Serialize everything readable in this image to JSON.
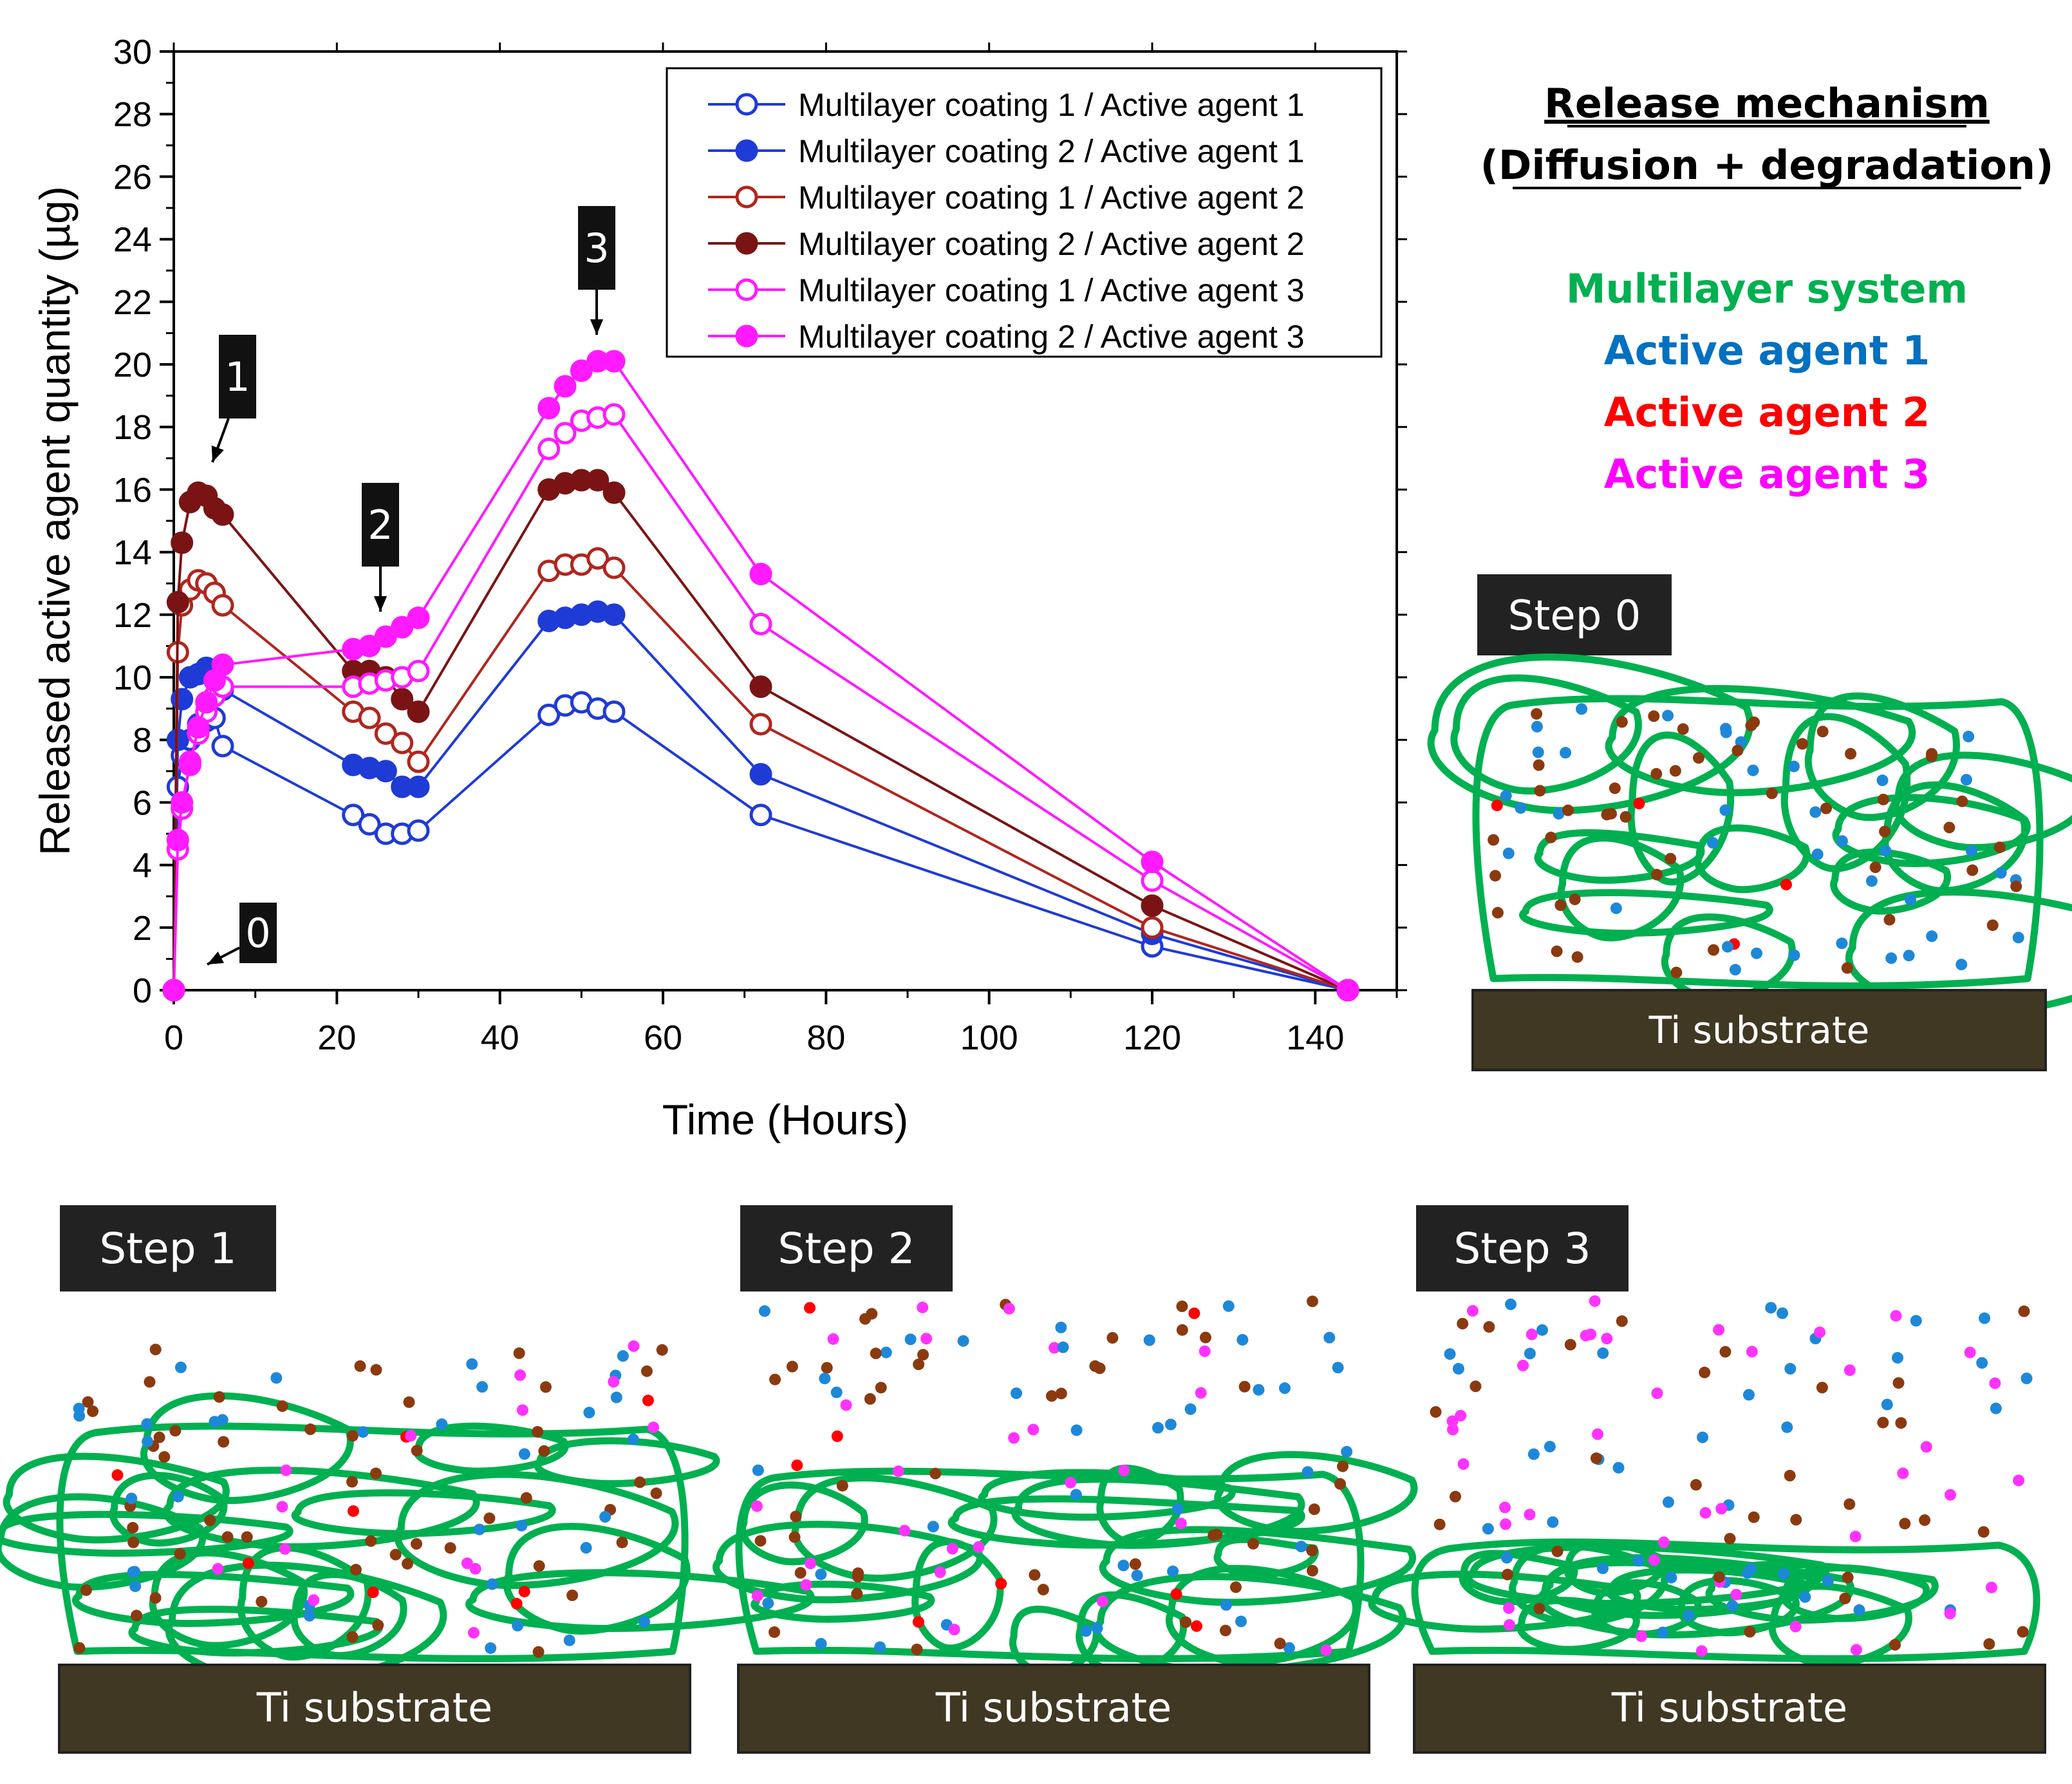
{
  "chart_data": {
    "type": "line",
    "xlabel": "Time (Hours)",
    "ylabel": "Released active agent quantity (µg)",
    "xlim": [
      0,
      150
    ],
    "ylim": [
      0,
      30
    ],
    "xticks": [
      0,
      20,
      40,
      60,
      80,
      100,
      120,
      140
    ],
    "yticks": [
      0,
      2,
      4,
      6,
      8,
      10,
      12,
      14,
      16,
      18,
      20,
      22,
      24,
      26,
      28,
      30
    ],
    "legend_position": "top-right",
    "series": [
      {
        "name": "Multilayer coating 1 / Active agent 1",
        "color": "#1f3bd6",
        "marker": "open",
        "x": [
          0,
          0.5,
          1,
          2,
          3,
          4,
          5,
          6,
          22,
          24,
          26,
          28,
          30,
          46,
          48,
          50,
          52,
          54,
          72,
          120,
          144
        ],
        "y": [
          0,
          6.5,
          7.5,
          8.0,
          8.5,
          8.6,
          8.7,
          7.8,
          5.6,
          5.3,
          5.0,
          5.0,
          5.1,
          8.8,
          9.1,
          9.2,
          9.0,
          8.9,
          5.6,
          1.4,
          0
        ]
      },
      {
        "name": "Multilayer coating 2 / Active agent 1",
        "color": "#1f3bd6",
        "marker": "filled",
        "x": [
          0,
          0.5,
          1,
          2,
          3,
          4,
          5,
          6,
          22,
          24,
          26,
          28,
          30,
          46,
          48,
          50,
          52,
          54,
          72,
          120,
          144
        ],
        "y": [
          0,
          8.0,
          9.3,
          10.0,
          10.1,
          10.3,
          10.0,
          9.6,
          7.2,
          7.1,
          7.0,
          6.5,
          6.5,
          11.8,
          11.9,
          12.0,
          12.1,
          12.0,
          6.9,
          1.8,
          0
        ]
      },
      {
        "name": "Multilayer coating 1 / Active agent 2",
        "color": "#b0261e",
        "marker": "open",
        "x": [
          0,
          0.5,
          1,
          2,
          3,
          4,
          5,
          6,
          22,
          24,
          26,
          28,
          30,
          46,
          48,
          50,
          52,
          54,
          72,
          120,
          144
        ],
        "y": [
          0,
          10.8,
          12.3,
          12.8,
          13.1,
          13.0,
          12.7,
          12.3,
          8.9,
          8.7,
          8.2,
          7.9,
          7.3,
          13.4,
          13.6,
          13.6,
          13.8,
          13.5,
          8.5,
          2.0,
          0
        ]
      },
      {
        "name": "Multilayer coating 2 / Active agent 2",
        "color": "#7a1414",
        "marker": "filled",
        "x": [
          0,
          0.5,
          1,
          2,
          3,
          4,
          5,
          6,
          22,
          24,
          26,
          28,
          30,
          46,
          48,
          50,
          52,
          54,
          72,
          120,
          144
        ],
        "y": [
          0,
          12.4,
          14.3,
          15.6,
          15.9,
          15.8,
          15.4,
          15.2,
          10.2,
          10.2,
          10.0,
          9.3,
          8.9,
          16.0,
          16.2,
          16.3,
          16.3,
          15.9,
          9.7,
          2.7,
          0
        ]
      },
      {
        "name": "Multilayer coating 1 / Active agent 3",
        "color": "#ff1aff",
        "marker": "open",
        "x": [
          0,
          0.5,
          1,
          2,
          3,
          4,
          5,
          6,
          22,
          24,
          26,
          28,
          30,
          46,
          48,
          50,
          52,
          54,
          72,
          120,
          144
        ],
        "y": [
          0,
          4.5,
          5.8,
          7.3,
          8.2,
          8.9,
          9.4,
          9.7,
          9.7,
          9.8,
          9.9,
          10.0,
          10.2,
          17.3,
          17.8,
          18.2,
          18.3,
          18.4,
          11.7,
          3.5,
          0
        ]
      },
      {
        "name": "Multilayer coating 2 / Active agent 3",
        "color": "#ff1aff",
        "marker": "filled",
        "x": [
          0,
          0.5,
          1,
          2,
          3,
          4,
          5,
          6,
          22,
          24,
          26,
          28,
          30,
          46,
          48,
          50,
          52,
          54,
          72,
          120,
          144
        ],
        "y": [
          0,
          4.8,
          6.0,
          7.2,
          8.4,
          9.2,
          9.9,
          10.4,
          10.9,
          11.0,
          11.3,
          11.6,
          11.9,
          18.6,
          19.3,
          19.8,
          20.1,
          20.1,
          13.3,
          4.1,
          0
        ]
      }
    ],
    "annotations": [
      {
        "label": "0",
        "x": 4,
        "y": 1.0
      },
      {
        "label": "1",
        "x": 5,
        "y": 17.5
      },
      {
        "label": "2",
        "x": 25,
        "y": 12.5
      },
      {
        "label": "3",
        "x": 51,
        "y": 21.0
      }
    ]
  },
  "mechanism": {
    "title_line1": "Release mechanism",
    "title_line2": "(Diffusion + degradation)",
    "legend": [
      {
        "label": "Multilayer system",
        "color": "#00b050"
      },
      {
        "label": "Active agent 1",
        "color": "#0070c0"
      },
      {
        "label": "Active agent 2",
        "color": "#ff0000"
      },
      {
        "label": "Active agent 3",
        "color": "#ff00ff"
      }
    ],
    "substrate_label": "Ti substrate",
    "colors": {
      "polymer": "#00b050",
      "substrate": "#403823",
      "step_label_bg": "#222222",
      "dot_brown": "#8b3a0f",
      "dot_blue": "#1e88d8",
      "dot_red": "#ff0000",
      "dot_pink": "#ff33ff"
    },
    "steps": [
      {
        "label": "Step 0"
      },
      {
        "label": "Step 1"
      },
      {
        "label": "Step 2"
      },
      {
        "label": "Step 3"
      }
    ]
  }
}
